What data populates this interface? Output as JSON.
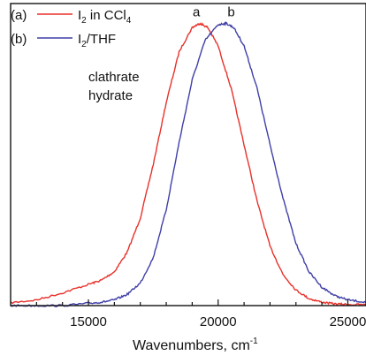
{
  "chart_data": {
    "type": "line",
    "xlabel": "Wavenumbers,  cm",
    "xlabel_sup": "-1",
    "ylabel": "",
    "xlim": [
      12000,
      25700
    ],
    "ylim": [
      0,
      1.07
    ],
    "x_ticks": [
      15000,
      20000,
      25000
    ],
    "y_ticks": [],
    "grid": false,
    "legend_position": "top-left",
    "series": [
      {
        "key": "a",
        "legend_prefix": "(a)",
        "legend_text": "I",
        "legend_sub": "2",
        "legend_text2": " in CCl",
        "legend_sub2": "4",
        "peak_label": "a",
        "color": "#e8312a",
        "x": [
          12000,
          13000,
          14000,
          15000,
          15500,
          16000,
          16500,
          17000,
          17500,
          18000,
          18500,
          19000,
          19300,
          19600,
          20000,
          20500,
          21000,
          21500,
          22000,
          22500,
          23000,
          23500,
          24000,
          24500,
          25000,
          25700
        ],
        "y": [
          0.01,
          0.02,
          0.045,
          0.075,
          0.09,
          0.12,
          0.19,
          0.31,
          0.5,
          0.72,
          0.9,
          0.985,
          1.0,
          0.985,
          0.92,
          0.77,
          0.57,
          0.37,
          0.21,
          0.11,
          0.055,
          0.025,
          0.012,
          0.006,
          0.004,
          0.003
        ]
      },
      {
        "key": "b",
        "legend_prefix": "(b)",
        "legend_text": "I",
        "legend_sub": "2",
        "legend_text2": "/THF",
        "legend_sub2": "",
        "legend_caption_line1": "clathrate",
        "legend_caption_line2": "hydrate",
        "peak_label": "b",
        "color": "#3f3fa8",
        "x": [
          12000,
          13000,
          14000,
          15000,
          15500,
          16000,
          16500,
          17000,
          17500,
          18000,
          18500,
          19000,
          19500,
          20000,
          20300,
          20600,
          21000,
          21500,
          22000,
          22500,
          23000,
          23500,
          24000,
          24500,
          25000,
          25700
        ],
        "y": [
          0.0,
          0.0,
          0.0,
          0.008,
          0.012,
          0.02,
          0.04,
          0.08,
          0.17,
          0.34,
          0.58,
          0.8,
          0.94,
          0.995,
          1.0,
          0.985,
          0.92,
          0.77,
          0.57,
          0.38,
          0.22,
          0.12,
          0.065,
          0.035,
          0.02,
          0.012
        ]
      }
    ]
  }
}
